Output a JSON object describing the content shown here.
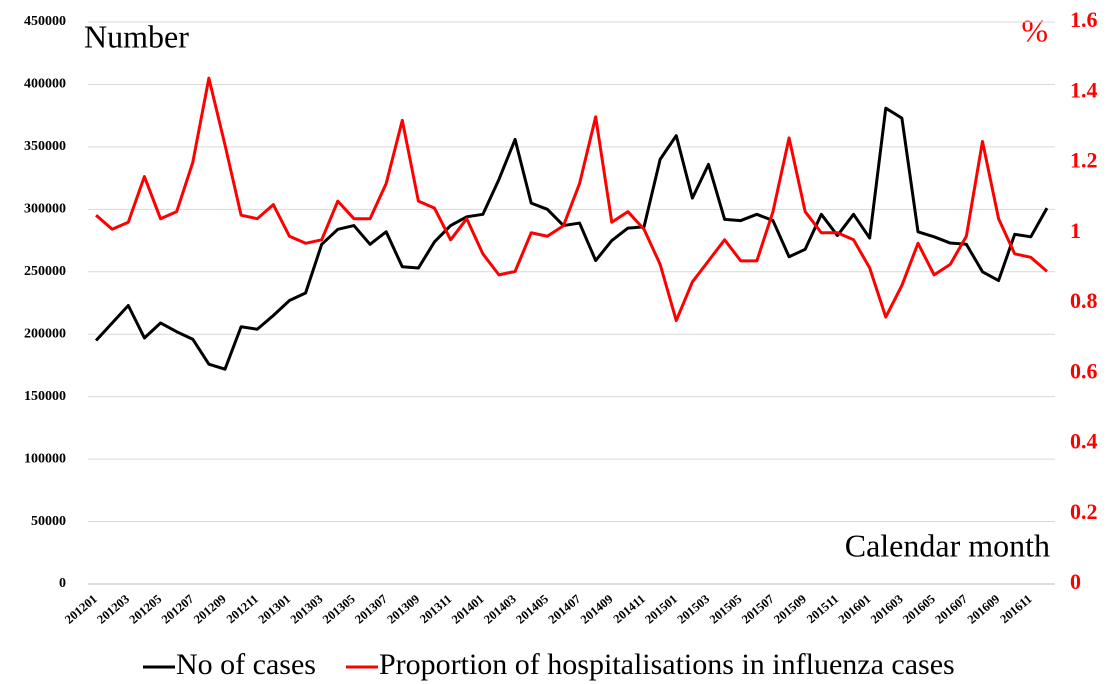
{
  "chart_data": {
    "type": "line",
    "y_label": "Number",
    "y2_label": "%",
    "x_label": "Calendar month",
    "categories": [
      "201201",
      null,
      "201203",
      null,
      "201205",
      null,
      "201207",
      null,
      "201209",
      null,
      "201211",
      null,
      "201301",
      null,
      "201303",
      null,
      "201305",
      null,
      "201307",
      null,
      "201309",
      null,
      "201311",
      null,
      "201401",
      null,
      "201403",
      null,
      "201405",
      null,
      "201407",
      null,
      "201409",
      null,
      "201411",
      null,
      "201501",
      null,
      "201503",
      null,
      "201505",
      null,
      "201507",
      null,
      "201509",
      null,
      "201511",
      null,
      "201601",
      null,
      "201603",
      null,
      "201605",
      null,
      "201607",
      null,
      "201609",
      null,
      "201611",
      null
    ],
    "series": [
      {
        "name": "No of cases",
        "color": "#000000",
        "axis": "y",
        "values": [
          195000,
          209000,
          223000,
          197000,
          209000,
          202000,
          196000,
          176000,
          172000,
          206000,
          204000,
          215000,
          227000,
          233000,
          272000,
          284000,
          287000,
          272000,
          282000,
          254000,
          253000,
          274000,
          287000,
          294000,
          296000,
          324000,
          356000,
          305000,
          300000,
          287000,
          289000,
          259000,
          275000,
          285000,
          286000,
          340000,
          359000,
          309000,
          336000,
          292000,
          291000,
          296000,
          291000,
          262000,
          268000,
          296000,
          279000,
          296000,
          277000,
          381000,
          373000,
          282000,
          278000,
          273000,
          272000,
          250000,
          243000,
          280000,
          278000,
          301000
        ]
      },
      {
        "name": "Proportion of hospitalisations in influenza cases",
        "color": "#ff0000",
        "axis": "y2",
        "values": [
          1.05,
          1.01,
          1.03,
          1.16,
          1.04,
          1.06,
          1.2,
          1.44,
          1.25,
          1.05,
          1.04,
          1.08,
          0.99,
          0.97,
          0.98,
          1.09,
          1.04,
          1.04,
          1.14,
          1.32,
          1.09,
          1.07,
          0.98,
          1.04,
          0.94,
          0.88,
          0.89,
          1.0,
          0.99,
          1.02,
          1.14,
          1.33,
          1.03,
          1.06,
          1.01,
          0.91,
          0.75,
          0.86,
          0.92,
          0.98,
          0.92,
          0.92,
          1.06,
          1.27,
          1.06,
          1.0,
          1.0,
          0.98,
          0.9,
          0.76,
          0.85,
          0.97,
          0.88,
          0.91,
          0.99,
          1.26,
          1.04,
          0.94,
          0.93,
          0.89
        ]
      }
    ],
    "ylim": [
      0,
      450000
    ],
    "yticks": [
      0,
      50000,
      100000,
      150000,
      200000,
      250000,
      300000,
      350000,
      400000,
      450000
    ],
    "y2lim": [
      0,
      1.6
    ],
    "y2ticks": [
      0,
      0.2,
      0.4,
      0.6,
      0.8,
      1,
      1.2,
      1.4,
      1.6
    ],
    "y2_color": "#ff0000",
    "grid": true,
    "legend": "bottom"
  }
}
